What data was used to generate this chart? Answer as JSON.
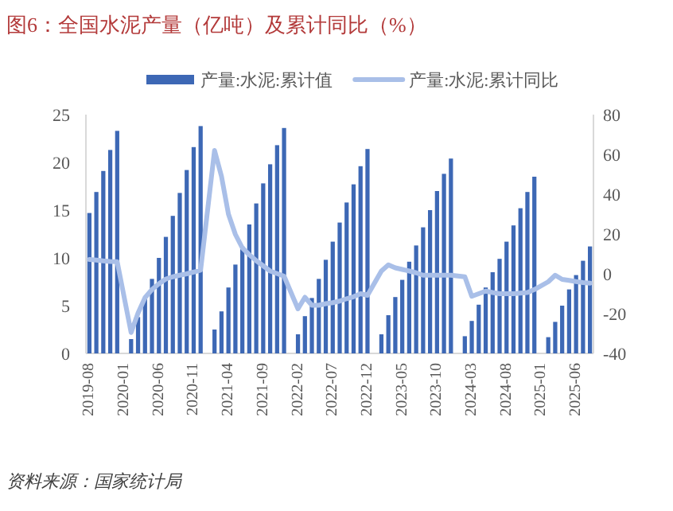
{
  "chart_data": {
    "type": "bar",
    "title": "图6：全国水泥产量（亿吨）及累计同比（%）",
    "annotations": [
      "资料来源：国家统计局"
    ],
    "categories": [
      "2019-08",
      null,
      null,
      null,
      null,
      "2020-01",
      null,
      null,
      null,
      null,
      "2020-06",
      null,
      null,
      null,
      null,
      "2020-11",
      null,
      null,
      null,
      null,
      "2021-04",
      null,
      null,
      null,
      null,
      "2021-09",
      null,
      null,
      null,
      null,
      "2022-02",
      null,
      null,
      null,
      null,
      "2022-07",
      null,
      null,
      null,
      null,
      "2022-12",
      null,
      null,
      null,
      null,
      "2023-05",
      null,
      null,
      null,
      null,
      "2023-10",
      null,
      null,
      null,
      null,
      "2024-03",
      null,
      null,
      null,
      null,
      "2024-08",
      null,
      null,
      null,
      null,
      "2025-01",
      null,
      null,
      null,
      null,
      "2025-06",
      null,
      null
    ],
    "series": [
      {
        "name": "产量:水泥:累计值",
        "color": "#3d68b5",
        "values": [
          14.7,
          16.9,
          19.1,
          21.3,
          23.3,
          null,
          1.5,
          3.8,
          5.7,
          7.8,
          10.0,
          12.2,
          14.4,
          16.8,
          19.2,
          21.6,
          23.8,
          null,
          2.5,
          4.4,
          6.9,
          9.3,
          11.2,
          13.5,
          15.7,
          17.8,
          19.8,
          21.8,
          23.6,
          null,
          2.0,
          3.9,
          5.8,
          7.8,
          9.8,
          11.7,
          13.7,
          15.8,
          17.7,
          19.6,
          21.4,
          null,
          2.0,
          4.0,
          5.9,
          7.7,
          9.6,
          11.3,
          13.2,
          15.0,
          17.0,
          18.8,
          20.4,
          null,
          1.8,
          3.4,
          5.1,
          6.9,
          8.5,
          9.9,
          11.7,
          13.4,
          15.2,
          16.9,
          18.5,
          null,
          1.7,
          3.3,
          5.0,
          6.7,
          8.2,
          9.7,
          11.2
        ]
      },
      {
        "name": "产量:水泥:累计同比",
        "type": "line",
        "axis": "y2",
        "color": "#a9bfe8",
        "values": [
          7.2,
          6.9,
          6.5,
          6.2,
          6.1,
          null,
          -29.5,
          -19.7,
          -12,
          -7.9,
          -5,
          -2.6,
          -1.5,
          -0.7,
          0,
          0.9,
          1.9,
          null,
          62,
          49,
          30,
          19.8,
          13,
          9.6,
          6.6,
          4,
          1.4,
          0.1,
          -1.2,
          null,
          -17.6,
          -11.8,
          -15.8,
          -15.8,
          -15,
          -14.5,
          -13.7,
          -12.5,
          -11.5,
          -10,
          -10.8,
          null,
          1.4,
          4.5,
          3.0,
          2.2,
          1.4,
          0.5,
          -0.7,
          -0.7,
          -0.7,
          -0.7,
          -0.7,
          null,
          -1.5,
          -11.3,
          -10,
          -8.7,
          -9.4,
          -10,
          -10,
          -10,
          -9.7,
          -9.4,
          -7.9,
          null,
          -4,
          -0.7,
          -2.8,
          -3.3,
          -3.9,
          -4.4,
          -4.7
        ]
      }
    ],
    "ylim": [
      0,
      25
    ],
    "yticks": [
      0,
      5,
      10,
      15,
      20,
      25
    ],
    "y2lim": [
      -40,
      80
    ],
    "y2ticks": [
      -40,
      -20,
      0,
      20,
      40,
      60,
      80
    ],
    "legend": "top",
    "grid": false
  }
}
